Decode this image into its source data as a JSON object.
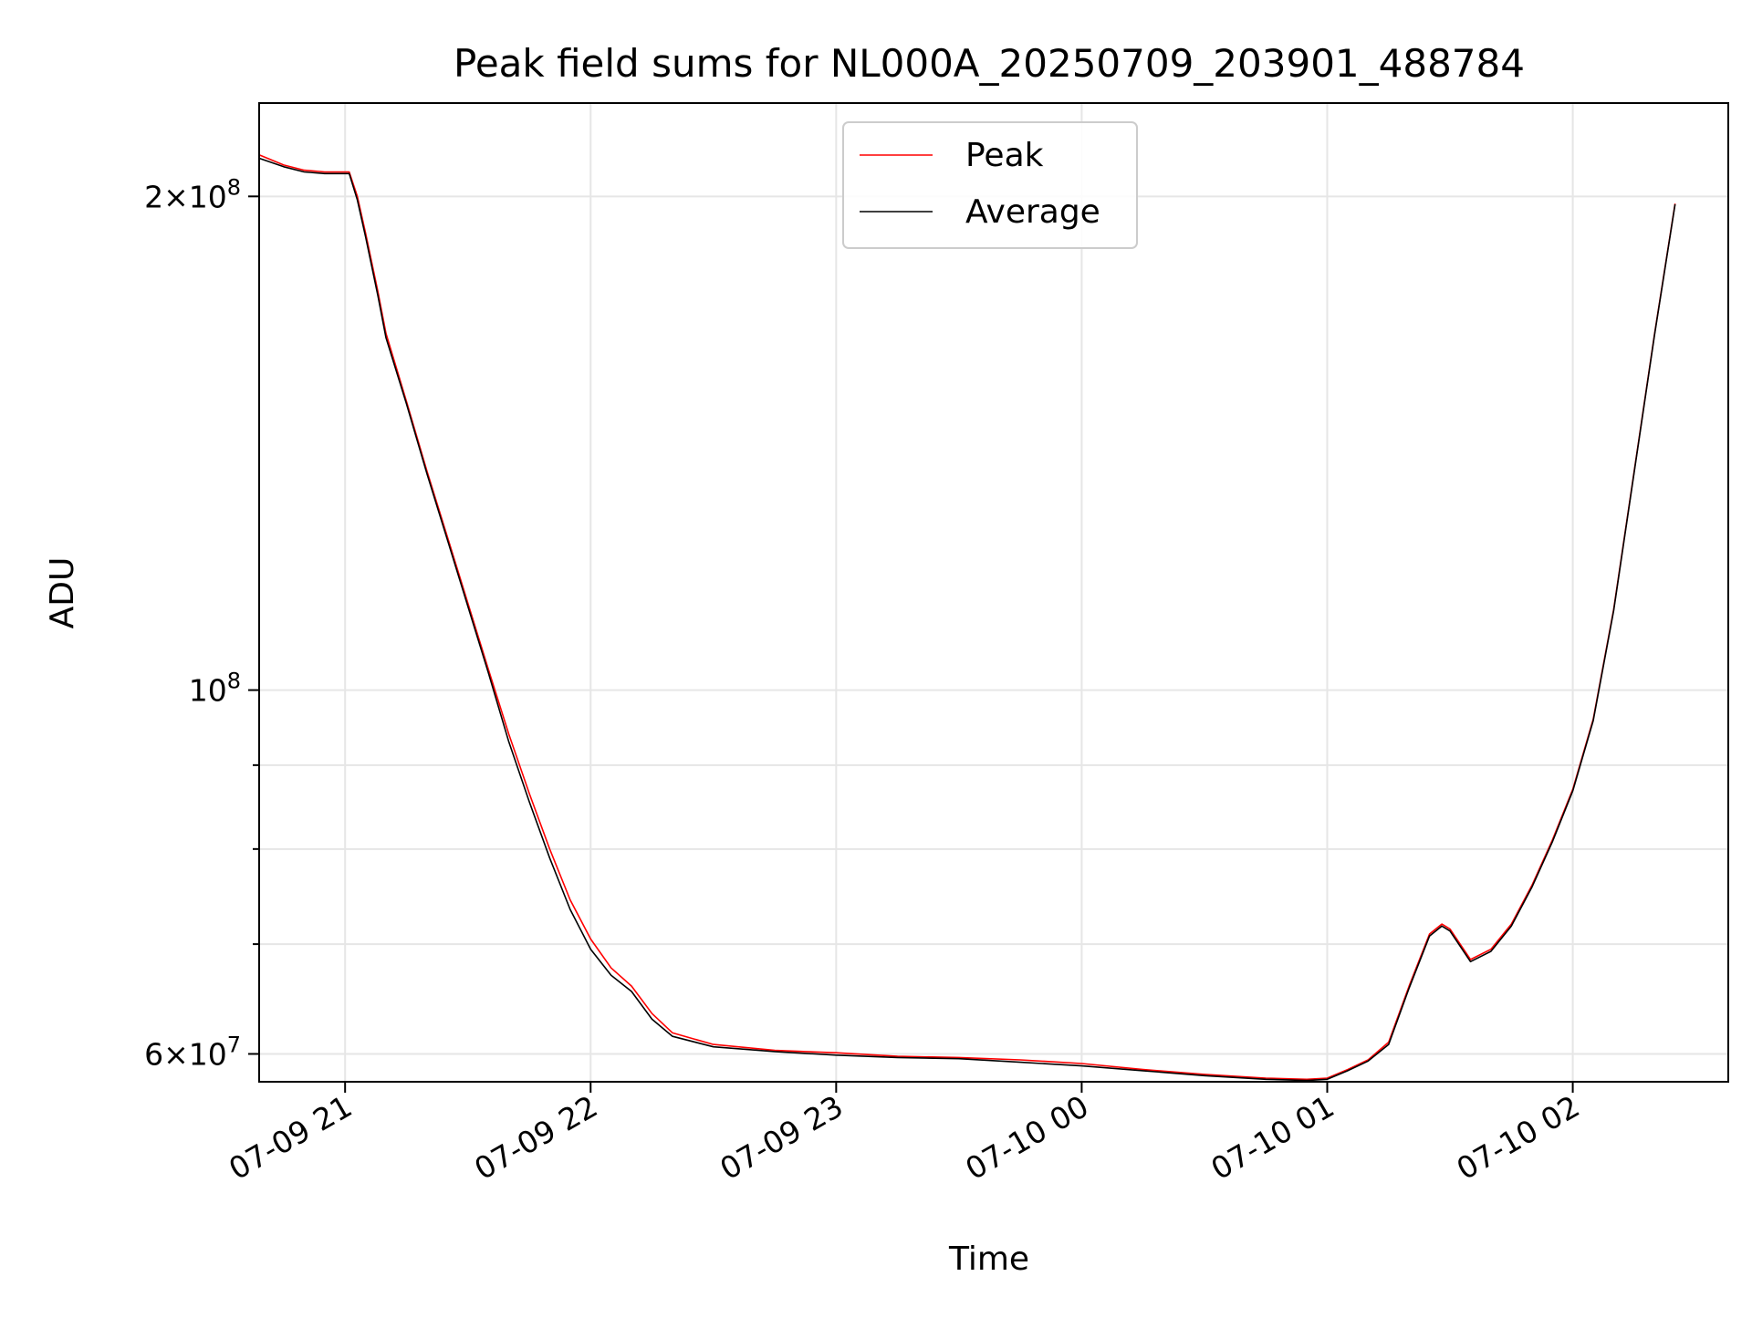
{
  "chart_data": {
    "type": "line",
    "title": "Peak field sums for NL000A_20250709_203901_488784",
    "xlabel": "Time",
    "ylabel": "ADU",
    "yscale": "log",
    "grid": true,
    "legend_position": "upper center",
    "x_tick_labels": [
      "07-09 21",
      "07-09 22",
      "07-09 23",
      "07-10 00",
      "07-10 01",
      "07-10 02"
    ],
    "x_ticks": [
      "2025-07-09 21:00",
      "2025-07-09 22:00",
      "2025-07-09 23:00",
      "2025-07-10 00:00",
      "2025-07-10 01:00",
      "2025-07-10 02:00"
    ],
    "xlim": [
      "2025-07-09 20:39",
      "2025-07-10 02:38"
    ],
    "ylim": [
      57700000,
      228000000
    ],
    "y_major_ticks": [
      {
        "value": 60000000,
        "mantissa": "6",
        "exponent": "7"
      },
      {
        "value": 100000000,
        "mantissa": "",
        "exponent": "8"
      },
      {
        "value": 200000000,
        "mantissa": "2",
        "exponent": "8"
      }
    ],
    "y_minor_ticks": [
      70000000,
      80000000,
      90000000
    ],
    "series": [
      {
        "name": "Peak",
        "color": "#ff0000",
        "x": [
          "2025-07-09 20:39",
          "2025-07-09 20:45",
          "2025-07-09 20:50",
          "2025-07-09 20:55",
          "2025-07-09 21:01",
          "2025-07-09 21:03",
          "2025-07-09 21:05",
          "2025-07-09 21:08",
          "2025-07-09 21:10",
          "2025-07-09 21:15",
          "2025-07-09 21:20",
          "2025-07-09 21:25",
          "2025-07-09 21:30",
          "2025-07-09 21:35",
          "2025-07-09 21:40",
          "2025-07-09 21:45",
          "2025-07-09 21:50",
          "2025-07-09 21:55",
          "2025-07-09 22:00",
          "2025-07-09 22:05",
          "2025-07-09 22:10",
          "2025-07-09 22:15",
          "2025-07-09 22:20",
          "2025-07-09 22:30",
          "2025-07-09 22:45",
          "2025-07-09 23:00",
          "2025-07-09 23:15",
          "2025-07-09 23:30",
          "2025-07-09 23:45",
          "2025-07-10 00:00",
          "2025-07-10 00:15",
          "2025-07-10 00:30",
          "2025-07-10 00:45",
          "2025-07-10 00:55",
          "2025-07-10 01:00",
          "2025-07-10 01:05",
          "2025-07-10 01:10",
          "2025-07-10 01:15",
          "2025-07-10 01:20",
          "2025-07-10 01:25",
          "2025-07-10 01:28",
          "2025-07-10 01:30",
          "2025-07-10 01:35",
          "2025-07-10 01:40",
          "2025-07-10 01:45",
          "2025-07-10 01:50",
          "2025-07-10 01:55",
          "2025-07-10 02:00",
          "2025-07-10 02:05",
          "2025-07-10 02:10",
          "2025-07-10 02:15",
          "2025-07-10 02:20",
          "2025-07-10 02:25"
        ],
        "y": [
          212000000,
          209000000,
          207500000,
          207000000,
          207000000,
          200000000,
          190000000,
          175000000,
          165000000,
          150000000,
          136000000,
          124000000,
          113000000,
          103000000,
          94000000,
          86500000,
          80000000,
          74500000,
          70500000,
          67700000,
          66000000,
          63500000,
          61800000,
          60800000,
          60300000,
          60100000,
          59800000,
          59700000,
          59500000,
          59200000,
          58700000,
          58300000,
          58000000,
          57900000,
          58000000,
          58700000,
          59500000,
          61000000,
          66000000,
          71000000,
          72000000,
          71500000,
          68500000,
          69500000,
          72000000,
          76000000,
          81000000,
          87000000,
          96000000,
          112000000,
          136000000,
          165000000,
          198000000
        ]
      },
      {
        "name": "Average",
        "color": "#000000",
        "x": [
          "2025-07-09 20:39",
          "2025-07-09 20:45",
          "2025-07-09 20:50",
          "2025-07-09 20:55",
          "2025-07-09 21:01",
          "2025-07-09 21:03",
          "2025-07-09 21:05",
          "2025-07-09 21:08",
          "2025-07-09 21:10",
          "2025-07-09 21:15",
          "2025-07-09 21:20",
          "2025-07-09 21:25",
          "2025-07-09 21:30",
          "2025-07-09 21:35",
          "2025-07-09 21:40",
          "2025-07-09 21:45",
          "2025-07-09 21:50",
          "2025-07-09 21:55",
          "2025-07-09 22:00",
          "2025-07-09 22:05",
          "2025-07-09 22:10",
          "2025-07-09 22:15",
          "2025-07-09 22:20",
          "2025-07-09 22:30",
          "2025-07-09 22:45",
          "2025-07-09 23:00",
          "2025-07-09 23:15",
          "2025-07-09 23:30",
          "2025-07-09 23:45",
          "2025-07-10 00:00",
          "2025-07-10 00:15",
          "2025-07-10 00:30",
          "2025-07-10 00:45",
          "2025-07-10 00:55",
          "2025-07-10 01:00",
          "2025-07-10 01:05",
          "2025-07-10 01:10",
          "2025-07-10 01:15",
          "2025-07-10 01:20",
          "2025-07-10 01:25",
          "2025-07-10 01:28",
          "2025-07-10 01:30",
          "2025-07-10 01:35",
          "2025-07-10 01:40",
          "2025-07-10 01:45",
          "2025-07-10 01:50",
          "2025-07-10 01:55",
          "2025-07-10 02:00",
          "2025-07-10 02:05",
          "2025-07-10 02:10",
          "2025-07-10 02:15",
          "2025-07-10 02:20",
          "2025-07-10 02:25"
        ],
        "y": [
          211000000,
          208500000,
          207000000,
          206500000,
          206500000,
          199000000,
          189000000,
          174000000,
          164000000,
          149500000,
          135500000,
          123500000,
          112500000,
          102500000,
          93000000,
          85500000,
          79000000,
          73500000,
          69500000,
          67000000,
          65500000,
          63000000,
          61500000,
          60600000,
          60200000,
          59900000,
          59700000,
          59600000,
          59300000,
          59000000,
          58600000,
          58200000,
          57900000,
          57800000,
          57900000,
          58600000,
          59400000,
          60800000,
          65800000,
          70800000,
          71800000,
          71300000,
          68300000,
          69300000,
          71800000,
          75800000,
          80800000,
          86800000,
          95800000,
          111800000,
          135800000,
          164800000,
          197800000
        ]
      }
    ]
  }
}
